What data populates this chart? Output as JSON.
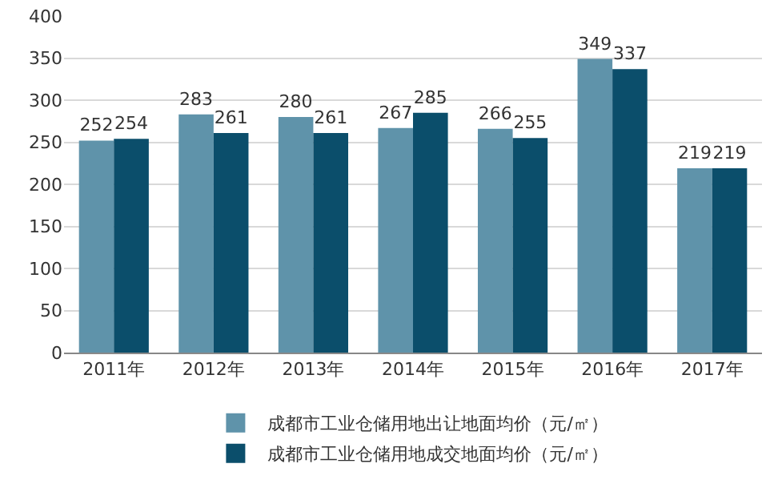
{
  "chart_data": {
    "type": "bar",
    "categories": [
      "2011年",
      "2012年",
      "2013年",
      "2014年",
      "2015年",
      "2016年",
      "2017年"
    ],
    "series": [
      {
        "name": "成都市工业仓储用地出让地面均价（元/㎡）",
        "color": "#5f93aa",
        "values": [
          252,
          283,
          280,
          267,
          266,
          349,
          219
        ]
      },
      {
        "name": "成都市工业仓储用地成交地面均价（元/㎡）",
        "color": "#0b4e6b",
        "values": [
          254,
          261,
          261,
          285,
          255,
          337,
          219
        ]
      }
    ],
    "ylim": [
      0,
      400
    ],
    "yticks": [
      0,
      50,
      100,
      150,
      200,
      250,
      300,
      350,
      400
    ],
    "grid": "y",
    "legend": "bottom",
    "data_labels": true
  }
}
